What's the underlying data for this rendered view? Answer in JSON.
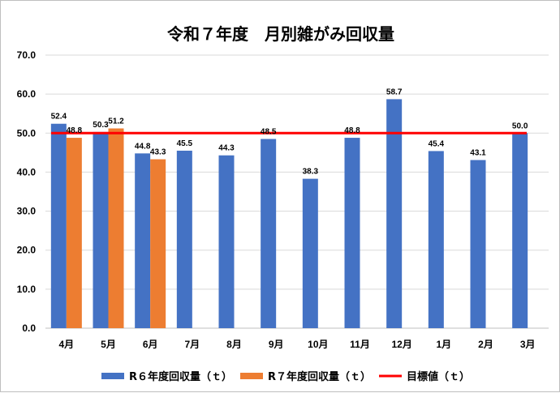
{
  "chart_data": {
    "type": "bar",
    "title": "令和７年度　月別雑がみ回収量",
    "categories": [
      "4月",
      "5月",
      "6月",
      "7月",
      "8月",
      "9月",
      "10月",
      "11月",
      "12月",
      "1月",
      "2月",
      "3月"
    ],
    "series": [
      {
        "name": "R６年度回収量（ｔ）",
        "color": "#4472c4",
        "values": [
          52.4,
          50.3,
          44.8,
          45.5,
          44.3,
          48.5,
          38.3,
          48.8,
          58.7,
          45.4,
          43.1,
          50.0
        ],
        "labels": [
          "52.4",
          "50.3",
          "44.8",
          "45.5",
          "44.3",
          "48.5",
          "38.3",
          "48.8",
          "58.7",
          "45.4",
          "43.1",
          "50.0"
        ]
      },
      {
        "name": "R７年度回収量（ｔ）",
        "color": "#ed7d31",
        "values": [
          48.8,
          51.2,
          43.3,
          null,
          null,
          null,
          null,
          null,
          null,
          null,
          null,
          null
        ],
        "labels": [
          "48.8",
          "51.2",
          "43.3",
          null,
          null,
          null,
          null,
          null,
          null,
          null,
          null,
          null
        ]
      }
    ],
    "target_line": {
      "name": "目標値（ｔ）",
      "value": 50.0,
      "color": "#ff0000"
    },
    "ylim": [
      0,
      70
    ],
    "yticks": [
      "0.0",
      "10.0",
      "20.0",
      "30.0",
      "40.0",
      "50.0",
      "60.0",
      "70.0"
    ],
    "grid": true,
    "legend_position": "bottom"
  }
}
